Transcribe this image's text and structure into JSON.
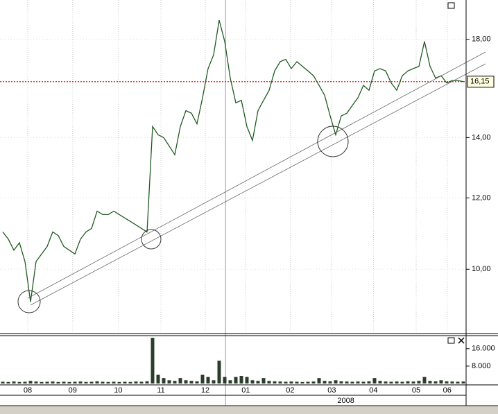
{
  "chart_data": [
    {
      "type": "line",
      "log_scale": true,
      "color": "#1f5a1f",
      "grid": true,
      "xlim": [
        -0.5,
        83.5
      ],
      "ylim": [
        8.5,
        19.9
      ],
      "yticks": [
        {
          "value": 10,
          "label": "10,00"
        },
        {
          "value": 12,
          "label": "12,00"
        },
        {
          "value": 14,
          "label": "14,00"
        },
        {
          "value": 18,
          "label": "18,00"
        }
      ],
      "reference_line": {
        "value": 16.15,
        "label": "16,15",
        "color": "#cc0000"
      },
      "values": [
        11.0,
        10.8,
        10.5,
        10.7,
        10.2,
        9.2,
        10.2,
        10.4,
        10.6,
        11.0,
        10.9,
        10.6,
        10.5,
        10.4,
        10.8,
        11.0,
        11.1,
        11.6,
        11.5,
        11.5,
        11.6,
        11.5,
        11.4,
        11.3,
        11.2,
        11.1,
        11.0,
        14.4,
        14.1,
        14.0,
        13.7,
        13.4,
        14.4,
        15.0,
        14.9,
        14.5,
        15.5,
        16.7,
        17.3,
        18.9,
        17.9,
        16.3,
        15.3,
        15.4,
        14.4,
        13.9,
        15.0,
        15.4,
        15.8,
        16.6,
        17.0,
        17.1,
        16.7,
        17.0,
        16.8,
        16.6,
        16.4,
        16.0,
        15.6,
        14.8,
        14.1,
        14.8,
        14.9,
        15.2,
        15.5,
        16.0,
        15.8,
        16.6,
        16.7,
        16.6,
        16.1,
        15.8,
        16.4,
        16.6,
        16.7,
        16.8,
        17.9,
        16.8,
        16.3,
        16.4,
        16.1,
        16.2,
        16.2,
        16.15
      ]
    },
    {
      "type": "bar",
      "color": "#2c3d2c",
      "xlim": [
        -0.5,
        83.5
      ],
      "ylim": [
        0,
        22000
      ],
      "yticks": [
        {
          "value": 8000,
          "label": "8.000"
        },
        {
          "value": 16000,
          "label": "16.000"
        }
      ],
      "xticks": [
        {
          "value": 4.5,
          "label": "08"
        },
        {
          "value": 12.6,
          "label": "09"
        },
        {
          "value": 20.8,
          "label": "10"
        },
        {
          "value": 28.5,
          "label": "11"
        },
        {
          "value": 36.5,
          "label": "12"
        },
        {
          "value": 43.8,
          "label": "01"
        },
        {
          "value": 51.8,
          "label": "02"
        },
        {
          "value": 59.3,
          "label": "03"
        },
        {
          "value": 66.8,
          "label": "04"
        },
        {
          "value": 74.5,
          "label": "05"
        },
        {
          "value": 80.1,
          "label": "06"
        }
      ],
      "year_label": "2008",
      "values": [
        800,
        700,
        900,
        700,
        800,
        1200,
        900,
        700,
        800,
        900,
        700,
        800,
        700,
        800,
        900,
        700,
        800,
        1000,
        800,
        700,
        800,
        700,
        800,
        700,
        900,
        800,
        1000,
        21000,
        4000,
        2500,
        1500,
        1200,
        2500,
        1500,
        1200,
        1000,
        4000,
        3000,
        1500,
        10500,
        3000,
        1500,
        3000,
        3500,
        3000,
        1500,
        1200,
        2500,
        1200,
        1000,
        900,
        800,
        900,
        800,
        700,
        800,
        900,
        2500,
        1200,
        1000,
        1500,
        1000,
        900,
        800,
        900,
        800,
        1000,
        2500,
        1200,
        900,
        800,
        900,
        800,
        1000,
        900,
        1200,
        3000,
        1200,
        1000,
        1500,
        1000,
        900,
        800,
        900
      ]
    }
  ]
}
